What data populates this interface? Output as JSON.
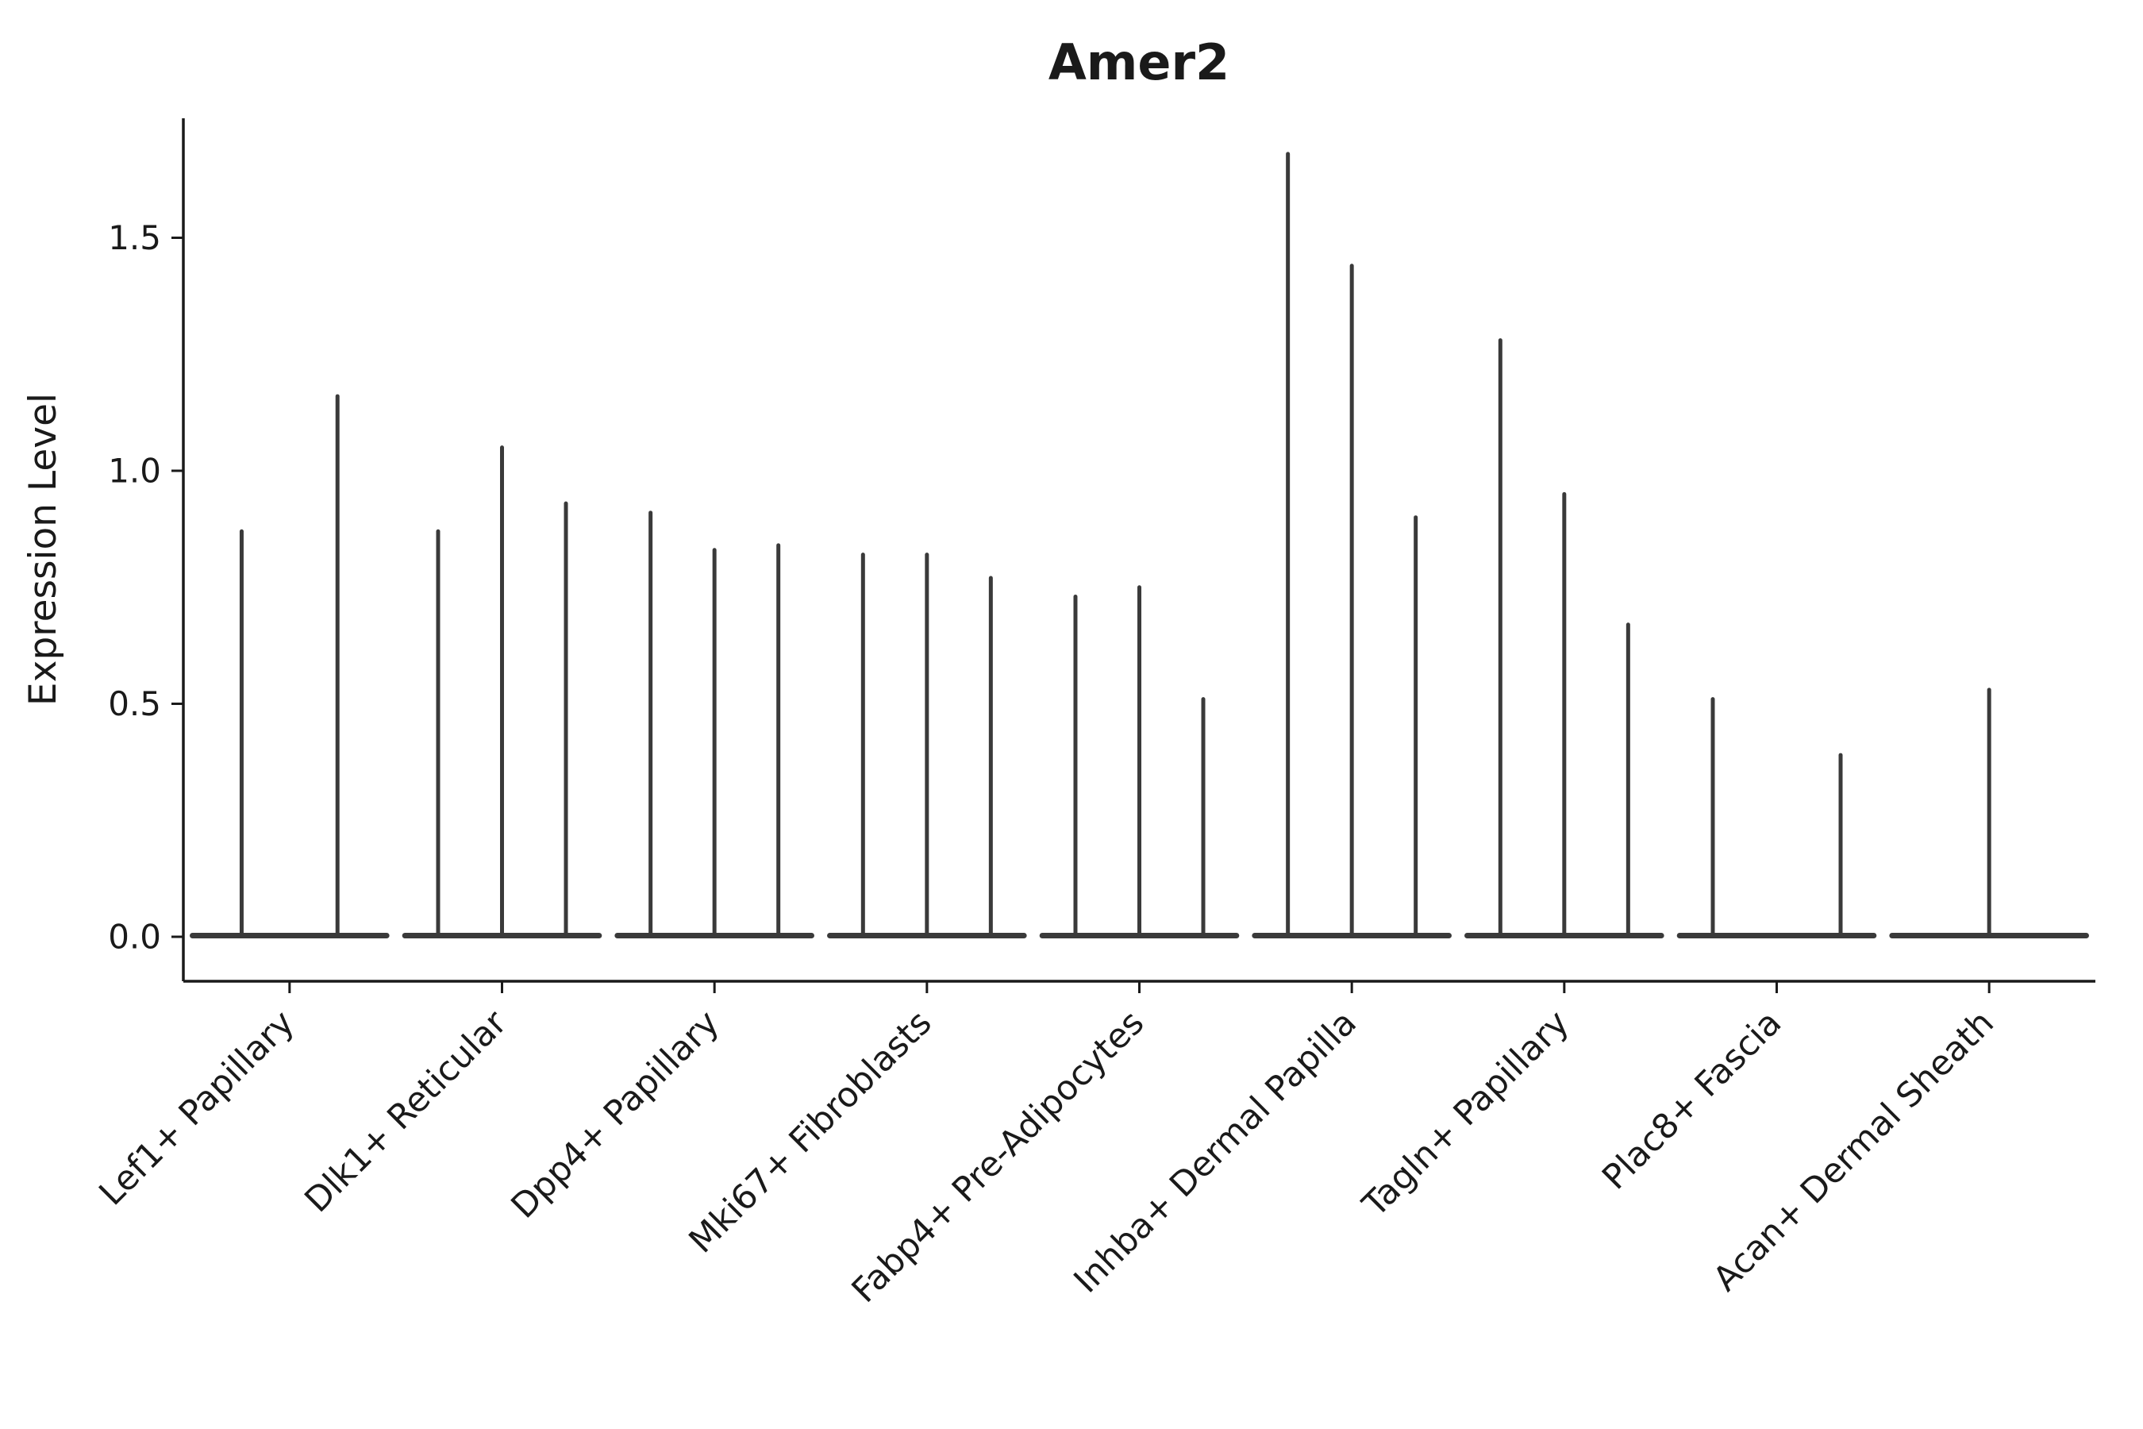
{
  "chart_data": {
    "type": "violin",
    "title": "Amer2",
    "xlabel": "",
    "ylabel": "Expression Level",
    "ylim": [
      -0.09,
      1.76
    ],
    "yticks": [
      0.0,
      0.5,
      1.0,
      1.5
    ],
    "ytick_labels": [
      "0.0",
      "0.5",
      "1.0",
      "1.5"
    ],
    "grid": false,
    "legend": null,
    "axis_color": "#1a1a1a",
    "violin_color": "#3a3a3a",
    "background": "#ffffff",
    "note": "Each category shows 1-3 very thin spike-like violins; 'max' is the top expression value each spike reaches; 'offset' is horizontal position within the category group as a fraction of group width.",
    "categories": [
      {
        "label": "Lef1+ Papillary",
        "violins": [
          {
            "offset": -0.24,
            "max": 0.87
          },
          {
            "offset": 0.24,
            "max": 1.16
          }
        ]
      },
      {
        "label": "Dlk1+ Reticular",
        "violins": [
          {
            "offset": -0.32,
            "max": 0.87
          },
          {
            "offset": 0.0,
            "max": 1.05
          },
          {
            "offset": 0.32,
            "max": 0.93
          }
        ]
      },
      {
        "label": "Dpp4+ Papillary",
        "violins": [
          {
            "offset": -0.32,
            "max": 0.91
          },
          {
            "offset": 0.0,
            "max": 0.83
          },
          {
            "offset": 0.32,
            "max": 0.84
          }
        ]
      },
      {
        "label": "Mki67+ Fibroblasts",
        "violins": [
          {
            "offset": -0.32,
            "max": 0.82
          },
          {
            "offset": 0.0,
            "max": 0.82
          },
          {
            "offset": 0.32,
            "max": 0.77
          }
        ]
      },
      {
        "label": "Fabp4+ Pre-Adipocytes",
        "violins": [
          {
            "offset": -0.32,
            "max": 0.73
          },
          {
            "offset": 0.0,
            "max": 0.75
          },
          {
            "offset": 0.32,
            "max": 0.51
          }
        ]
      },
      {
        "label": "Inhba+ Dermal Papilla",
        "violins": [
          {
            "offset": -0.32,
            "max": 1.68
          },
          {
            "offset": 0.0,
            "max": 1.44
          },
          {
            "offset": 0.32,
            "max": 0.9
          }
        ]
      },
      {
        "label": "Tagln+ Papillary",
        "violins": [
          {
            "offset": -0.32,
            "max": 1.28
          },
          {
            "offset": 0.0,
            "max": 0.95
          },
          {
            "offset": 0.32,
            "max": 0.67
          }
        ]
      },
      {
        "label": "Plac8+ Fascia",
        "violins": [
          {
            "offset": -0.32,
            "max": 0.51
          },
          {
            "offset": 0.32,
            "max": 0.39
          }
        ]
      },
      {
        "label": "Acan+ Dermal Sheath",
        "violins": [
          {
            "offset": 0.0,
            "max": 0.53
          }
        ]
      }
    ]
  }
}
